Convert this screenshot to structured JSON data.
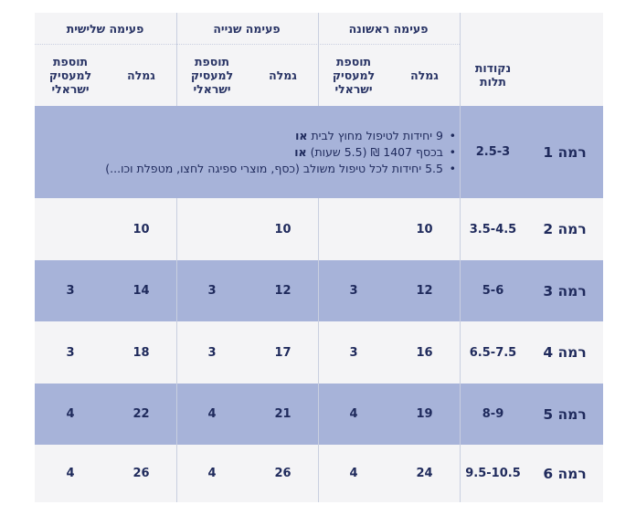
{
  "header": {
    "groups": [
      "פעימה ראשונה",
      "פעימה שנייה",
      "פעימה שלישית"
    ],
    "points_label": "נקודות\nתלות",
    "pension_label": "גמלה",
    "employer_bonus_label": "תוספת\nלמעסיק\nישראלי"
  },
  "level1": {
    "label": "רמה 1",
    "points": "2.5-3",
    "bullets": [
      {
        "text": "9 יחידות לטיפול מחוץ לבית",
        "bold": "או"
      },
      {
        "text": "בכסף 1407 ₪ (5.5 שעות)",
        "bold": "או"
      },
      {
        "text": "5.5 יחידות לכל טיפול משולב (כסף, מוצרי ספיגה לחצו, מטפלת וכו...)",
        "bold": ""
      }
    ]
  },
  "rows": [
    {
      "label": "רמה 2",
      "points": "3.5-4.5",
      "p1": "10",
      "b1": "",
      "p2": "10",
      "b2": "",
      "p3": "10",
      "b3": ""
    },
    {
      "label": "רמה 3",
      "points": "5-6",
      "p1": "12",
      "b1": "3",
      "p2": "12",
      "b2": "3",
      "p3": "14",
      "b3": "3"
    },
    {
      "label": "רמה 4",
      "points": "6.5-7.5",
      "p1": "16",
      "b1": "3",
      "p2": "17",
      "b2": "3",
      "p3": "18",
      "b3": "3"
    },
    {
      "label": "רמה 5",
      "points": "8-9",
      "p1": "19",
      "b1": "4",
      "p2": "21",
      "b2": "4",
      "p3": "22",
      "b3": "4"
    },
    {
      "label": "רמה 6",
      "points": "9.5-10.5",
      "p1": "24",
      "b1": "4",
      "p2": "26",
      "b2": "4",
      "p3": "26",
      "b3": "4"
    }
  ],
  "colors": {
    "light_row": "#f4f4f6",
    "blue_row": "#a7b3d9",
    "text": "#1f2a5c"
  }
}
